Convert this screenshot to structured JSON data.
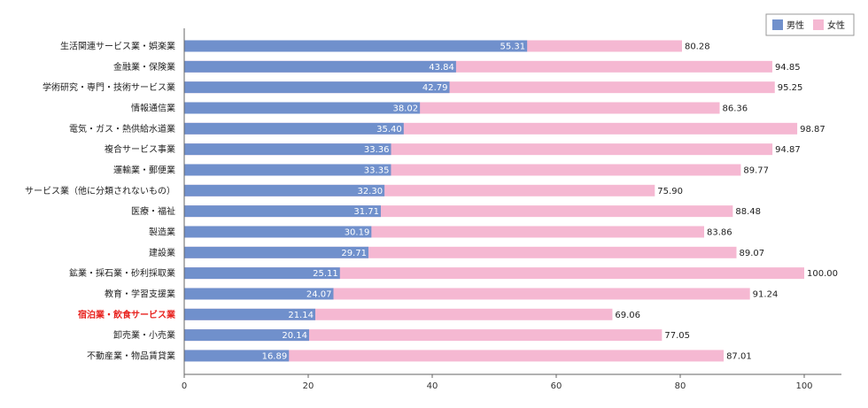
{
  "chart_data": {
    "type": "bar",
    "orientation": "horizontal",
    "stacked": "overlay",
    "categories": [
      "生活関連サービス業・娯楽業",
      "金融業・保険業",
      "学術研究・専門・技術サービス業",
      "情報通信業",
      "電気・ガス・熱供給水道業",
      "複合サービス事業",
      "運輸業・郵便業",
      "サービス業（他に分類されないもの）",
      "医療・福祉",
      "製造業",
      "建設業",
      "鉱業・採石業・砂利採取業",
      "教育・学習支援業",
      "宿泊業・飲食サービス業",
      "卸売業・小売業",
      "不動産業・物品賃貸業"
    ],
    "highlight_category": "宿泊業・飲食サービス業",
    "highlight_color": "#e8231f",
    "series": [
      {
        "name": "男性",
        "color": "#7090cc",
        "values": [
          55.31,
          43.84,
          42.79,
          38.02,
          35.4,
          33.36,
          33.35,
          32.3,
          31.71,
          30.19,
          29.71,
          25.11,
          24.07,
          21.14,
          20.14,
          16.89
        ],
        "labels": [
          "55.31",
          "43.84",
          "42.79",
          "38.02",
          "35.40",
          "33.36",
          "33.35",
          "32.30",
          "31.71",
          "30.19",
          "29.71",
          "25.11",
          "24.07",
          "21.14",
          "20.14",
          "16.89"
        ]
      },
      {
        "name": "女性",
        "color": "#f5b8d2",
        "values": [
          80.28,
          94.85,
          95.25,
          86.36,
          98.87,
          94.87,
          89.77,
          75.9,
          88.48,
          83.86,
          89.07,
          100.0,
          91.24,
          69.06,
          77.05,
          87.01
        ],
        "labels": [
          "80.28",
          "94.85",
          "95.25",
          "86.36",
          "98.87",
          "94.87",
          "89.77",
          "75.90",
          "88.48",
          "83.86",
          "89.07",
          "100.00",
          "91.24",
          "69.06",
          "77.05",
          "87.01"
        ]
      }
    ],
    "xlim": [
      0,
      100
    ],
    "xticks": [
      "0",
      "20",
      "40",
      "60",
      "80",
      "100"
    ],
    "xlabel": "",
    "ylabel": "",
    "title": "",
    "legend_position": "top-right",
    "grid": false
  }
}
